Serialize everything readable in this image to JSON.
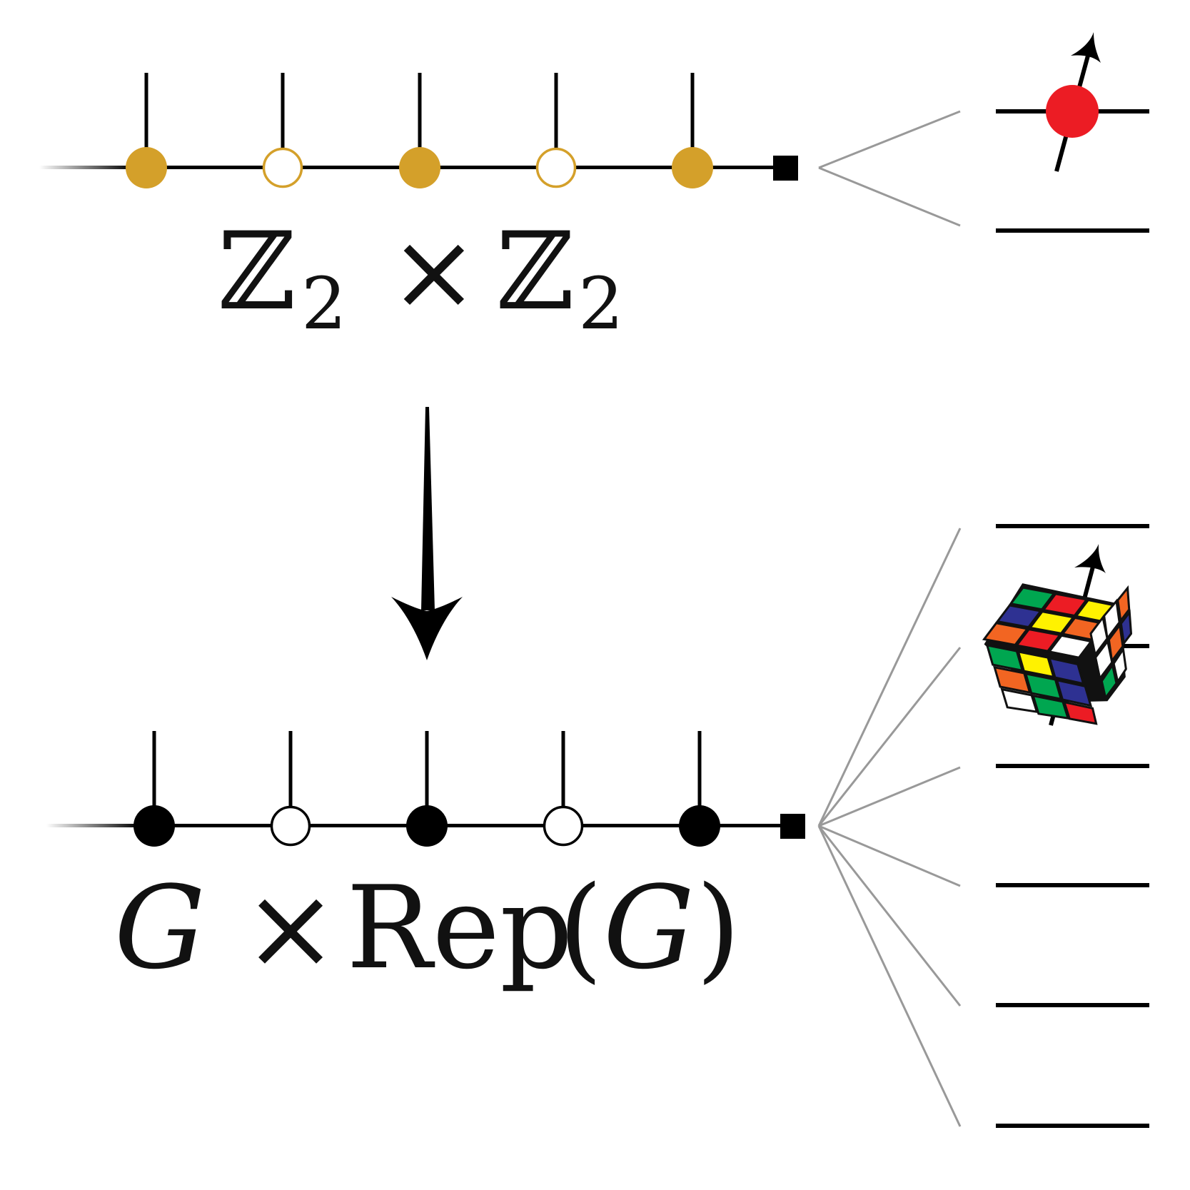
{
  "top_chain": {
    "label_left": "ℤ",
    "label_sub": "2",
    "label_times": "×",
    "label_right": "ℤ",
    "label_sub2": "2",
    "node_fill": [
      "filled",
      "open",
      "filled",
      "open",
      "filled"
    ],
    "node_color": "#d4a02a"
  },
  "bottom_chain": {
    "label_g": "G",
    "label_times": "×",
    "label_rep": "Rep",
    "label_open": "(",
    "label_g2": "G",
    "label_close": ")",
    "node_fill": [
      "filled",
      "open",
      "filled",
      "open",
      "filled"
    ],
    "node_color": "#000000"
  },
  "top_spectrum": {
    "levels": 2
  },
  "bottom_spectrum": {
    "levels": 6
  },
  "colors": {
    "spin_red": "#ec1c24",
    "fan_gray": "#999999",
    "cube": [
      "#f26522",
      "#ec1c24",
      "#fff200",
      "#00a650",
      "#2e3192",
      "#ffffff"
    ]
  }
}
